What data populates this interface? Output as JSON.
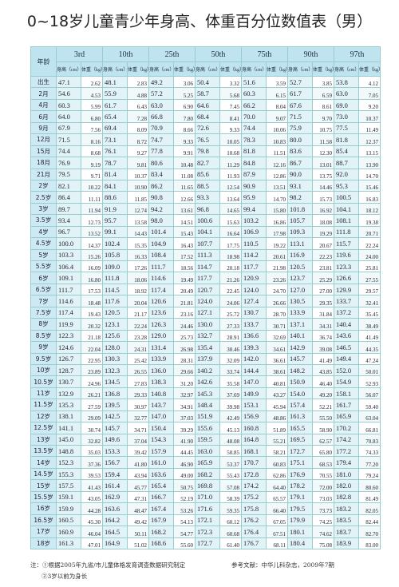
{
  "title": "0~18岁儿童青少年身高、体重百分位数值表（男）",
  "table": {
    "age_header": "年龄",
    "columns": [
      "3rd",
      "10th",
      "25th",
      "50th",
      "75th",
      "90th",
      "97th"
    ],
    "subheaders": [
      "身高（cm）",
      "体重（kg）"
    ],
    "rows": [
      [
        "出生",
        "47.1",
        "2.62",
        "48.1",
        "2.83",
        "49.2",
        "3.06",
        "50.4",
        "3.32",
        "51.6",
        "3.59",
        "52.7",
        "3.85",
        "53.8",
        "4.12"
      ],
      [
        "2月",
        "54.6",
        "4.53",
        "55.9",
        "4.88",
        "57.2",
        "5.25",
        "58.7",
        "5.68",
        "60.3",
        "6.15",
        "61.7",
        "6.59",
        "63.0",
        "7.05"
      ],
      [
        "4月",
        "60.3",
        "5.99",
        "61.7",
        "6.43",
        "63.0",
        "6.90",
        "64.6",
        "7.45",
        "66.2",
        "8.04",
        "67.6",
        "8.61",
        "69.0",
        "9.20"
      ],
      [
        "6月",
        "64.0",
        "6.80",
        "65.4",
        "7.28",
        "66.8",
        "7.80",
        "68.4",
        "8.41",
        "70.0",
        "9.07",
        "71.5",
        "9.70",
        "73.0",
        "10.37"
      ],
      [
        "9月",
        "67.9",
        "7.56",
        "69.4",
        "8.09",
        "70.9",
        "8.66",
        "72.6",
        "9.33",
        "74.4",
        "10.06",
        "75.9",
        "10.75",
        "77.5",
        "11.49"
      ],
      [
        "12月",
        "71.5",
        "8.16",
        "73.1",
        "8.72",
        "74.7",
        "9.33",
        "76.5",
        "10.05",
        "78.3",
        "10.83",
        "80.0",
        "11.58",
        "81.8",
        "12.37"
      ],
      [
        "15月",
        "74.4",
        "8.68",
        "76.1",
        "9.27",
        "77.8",
        "9.91",
        "79.8",
        "10.68",
        "81.8",
        "11.51",
        "83.6",
        "12.30",
        "85.4",
        "13.15"
      ],
      [
        "18月",
        "76.9",
        "9.19",
        "78.7",
        "9.81",
        "80.6",
        "10.48",
        "82.7",
        "11.29",
        "84.8",
        "12.16",
        "86.7",
        "13.01",
        "88.7",
        "13.90"
      ],
      [
        "21月",
        "79.5",
        "9.71",
        "81.4",
        "10.37",
        "83.4",
        "11.08",
        "85.6",
        "11.93",
        "87.9",
        "12.86",
        "90.0",
        "13.75",
        "92.0",
        "14.70"
      ],
      [
        "2岁",
        "82.1",
        "10.22",
        "84.1",
        "10.90",
        "86.2",
        "11.65",
        "88.5",
        "12.54",
        "90.9",
        "13.51",
        "93.1",
        "14.46",
        "95.3",
        "15.46"
      ],
      [
        "2.5岁",
        "86.4",
        "11.11",
        "88.6",
        "11.85",
        "90.8",
        "12.66",
        "93.3",
        "13.64",
        "95.9",
        "14.70",
        "98.2",
        "15.73",
        "100.5",
        "16.83"
      ],
      [
        "3岁",
        "89.7",
        "11.94",
        "91.9",
        "12.74",
        "94.2",
        "13.61",
        "96.8",
        "14.65",
        "99.4",
        "15.80",
        "101.8",
        "16.92",
        "104.1",
        "18.12"
      ],
      [
        "3.5岁",
        "93.4",
        "12.73",
        "95.7",
        "13.58",
        "98.0",
        "14.51",
        "100.6",
        "15.63",
        "103.2",
        "16.86",
        "105.7",
        "18.08",
        "108.1",
        "19.38"
      ],
      [
        "4岁",
        "96.7",
        "13.52",
        "99.1",
        "14.43",
        "101.4",
        "15.43",
        "104.1",
        "16.64",
        "106.9",
        "17.98",
        "109.3",
        "19.29",
        "111.8",
        "20.71"
      ],
      [
        "4.5岁",
        "100.0",
        "14.37",
        "102.4",
        "15.35",
        "104.9",
        "16.43",
        "107.7",
        "17.75",
        "110.5",
        "19.22",
        "113.1",
        "20.67",
        "115.7",
        "22.24"
      ],
      [
        "5岁",
        "103.3",
        "15.26",
        "105.8",
        "16.33",
        "108.4",
        "17.52",
        "111.3",
        "18.98",
        "114.2",
        "20.61",
        "116.9",
        "22.23",
        "119.6",
        "24.00"
      ],
      [
        "5.5岁",
        "106.4",
        "16.09",
        "109.0",
        "17.26",
        "111.7",
        "18.56",
        "114.7",
        "20.18",
        "117.7",
        "21.98",
        "120.5",
        "23.81",
        "123.3",
        "25.81"
      ],
      [
        "6岁",
        "109.1",
        "16.80",
        "111.8",
        "18.06",
        "114.6",
        "19.49",
        "117.7",
        "21.26",
        "120.9",
        "23.26",
        "123.7",
        "25.29",
        "126.6",
        "27.55"
      ],
      [
        "6.5岁",
        "111.7",
        "17.53",
        "114.5",
        "18.92",
        "117.4",
        "20.49",
        "120.7",
        "22.45",
        "124.0",
        "24.70",
        "127.0",
        "27.00",
        "129.9",
        "29.57"
      ],
      [
        "7岁",
        "114.6",
        "18.48",
        "117.6",
        "20.04",
        "120.6",
        "21.81",
        "124.0",
        "24.06",
        "127.4",
        "26.66",
        "130.5",
        "29.35",
        "133.7",
        "32.41"
      ],
      [
        "7.5岁",
        "117.4",
        "19.43",
        "120.5",
        "21.17",
        "123.6",
        "23.16",
        "127.1",
        "25.72",
        "130.7",
        "28.70",
        "133.9",
        "31.84",
        "137.2",
        "35.45"
      ],
      [
        "8岁",
        "119.9",
        "20.32",
        "123.1",
        "22.24",
        "126.3",
        "24.46",
        "130.0",
        "27.33",
        "133.7",
        "30.71",
        "137.1",
        "34.31",
        "140.4",
        "38.49"
      ],
      [
        "8.5岁",
        "122.3",
        "21.18",
        "125.6",
        "23.28",
        "129.0",
        "25.73",
        "132.7",
        "28.91",
        "136.6",
        "32.69",
        "140.1",
        "36.74",
        "143.6",
        "41.49"
      ],
      [
        "9岁",
        "124.6",
        "22.04",
        "128.0",
        "24.31",
        "131.4",
        "26.98",
        "135.4",
        "30.46",
        "139.3",
        "34.61",
        "142.9",
        "39.08",
        "146.5",
        "44.35"
      ],
      [
        "9.5岁",
        "126.7",
        "22.95",
        "130.3",
        "25.42",
        "133.9",
        "28.31",
        "137.9",
        "32.09",
        "142.0",
        "36.61",
        "145.7",
        "41.49",
        "149.4",
        "47.24"
      ],
      [
        "10岁",
        "128.7",
        "23.89",
        "132.3",
        "26.55",
        "136.0",
        "29.66",
        "140.2",
        "33.74",
        "144.4",
        "38.61",
        "148.2",
        "43.85",
        "152.0",
        "50.01"
      ],
      [
        "10.5岁",
        "130.7",
        "24.96",
        "134.5",
        "27.83",
        "138.3",
        "31.20",
        "142.6",
        "35.58",
        "147.0",
        "40.81",
        "150.9",
        "46.40",
        "154.9",
        "52.93"
      ],
      [
        "11岁",
        "132.9",
        "26.21",
        "136.8",
        "29.33",
        "140.8",
        "32.97",
        "145.3",
        "37.69",
        "149.9",
        "43.27",
        "154.0",
        "49.20",
        "158.1",
        "56.07"
      ],
      [
        "11.5岁",
        "135.3",
        "27.59",
        "139.5",
        "30.97",
        "143.7",
        "34.91",
        "148.4",
        "39.98",
        "153.1",
        "45.94",
        "157.4",
        "52.21",
        "161.7",
        "59.40"
      ],
      [
        "12岁",
        "138.1",
        "29.09",
        "142.5",
        "32.77",
        "147.0",
        "37.03",
        "151.9",
        "42.49",
        "156.9",
        "48.86",
        "161.3",
        "55.50",
        "165.9",
        "63.04"
      ],
      [
        "12.5岁",
        "141.1",
        "30.74",
        "145.7",
        "34.71",
        "150.4",
        "39.29",
        "155.6",
        "45.13",
        "160.8",
        "51.89",
        "165.5",
        "58.90",
        "170.2",
        "66.81"
      ],
      [
        "13岁",
        "145.0",
        "32.82",
        "149.6",
        "37.04",
        "154.3",
        "41.90",
        "159.5",
        "48.08",
        "164.8",
        "55.21",
        "169.5",
        "62.57",
        "174.2",
        "70.83"
      ],
      [
        "13.5岁",
        "148.8",
        "35.03",
        "153.3",
        "39.42",
        "157.9",
        "44.45",
        "163.0",
        "50.85",
        "168.1",
        "58.21",
        "172.7",
        "65.80",
        "177.2",
        "74.33"
      ],
      [
        "14岁",
        "152.3",
        "37.36",
        "156.7",
        "41.80",
        "161.0",
        "46.90",
        "165.9",
        "53.37",
        "170.7",
        "60.83",
        "175.1",
        "68.53",
        "179.4",
        "77.20"
      ],
      [
        "14.5岁",
        "155.3",
        "39.53",
        "159.4",
        "43.94",
        "163.6",
        "49.00",
        "168.2",
        "55.43",
        "172.8",
        "62.86",
        "176.9",
        "70.55",
        "181.0",
        "79.24"
      ],
      [
        "15岁",
        "157.5",
        "41.43",
        "161.4",
        "45.77",
        "165.4",
        "50.75",
        "169.8",
        "57.08",
        "174.2",
        "64.40",
        "178.2",
        "72.00",
        "182.0",
        "80.60"
      ],
      [
        "15.5岁",
        "159.1",
        "43.05",
        "162.9",
        "47.31",
        "166.7",
        "52.19",
        "171.0",
        "58.39",
        "175.2",
        "65.57",
        "179.1",
        "73.03",
        "182.8",
        "81.49"
      ],
      [
        "16岁",
        "159.9",
        "44.28",
        "163.6",
        "48.47",
        "167.4",
        "53.26",
        "171.6",
        "59.35",
        "175.8",
        "66.40",
        "179.5",
        "73.73",
        "183.2",
        "82.05"
      ],
      [
        "16.5岁",
        "160.5",
        "45.30",
        "164.2",
        "49.42",
        "167.9",
        "54.13",
        "172.1",
        "60.12",
        "176.2",
        "67.05",
        "179.9",
        "74.25",
        "183.5",
        "82.44"
      ],
      [
        "17岁",
        "160.9",
        "46.04",
        "164.5",
        "50.11",
        "168.2",
        "54.77",
        "172.3",
        "60.68",
        "176.4",
        "67.51",
        "180.1",
        "74.62",
        "183.7",
        "82.70"
      ],
      [
        "18岁",
        "161.3",
        "47.01",
        "164.9",
        "51.02",
        "168.6",
        "55.60",
        "172.7",
        "61.40",
        "176.7",
        "68.11",
        "180.4",
        "75.08",
        "183.9",
        "83.00"
      ]
    ]
  },
  "notes": {
    "note1": "注：①根据2005年九省/市儿童体格发育调查数据研究制定",
    "reference": "参考文献：中华儿科杂志，2009年7期",
    "note2": "②3岁以前为身长"
  }
}
